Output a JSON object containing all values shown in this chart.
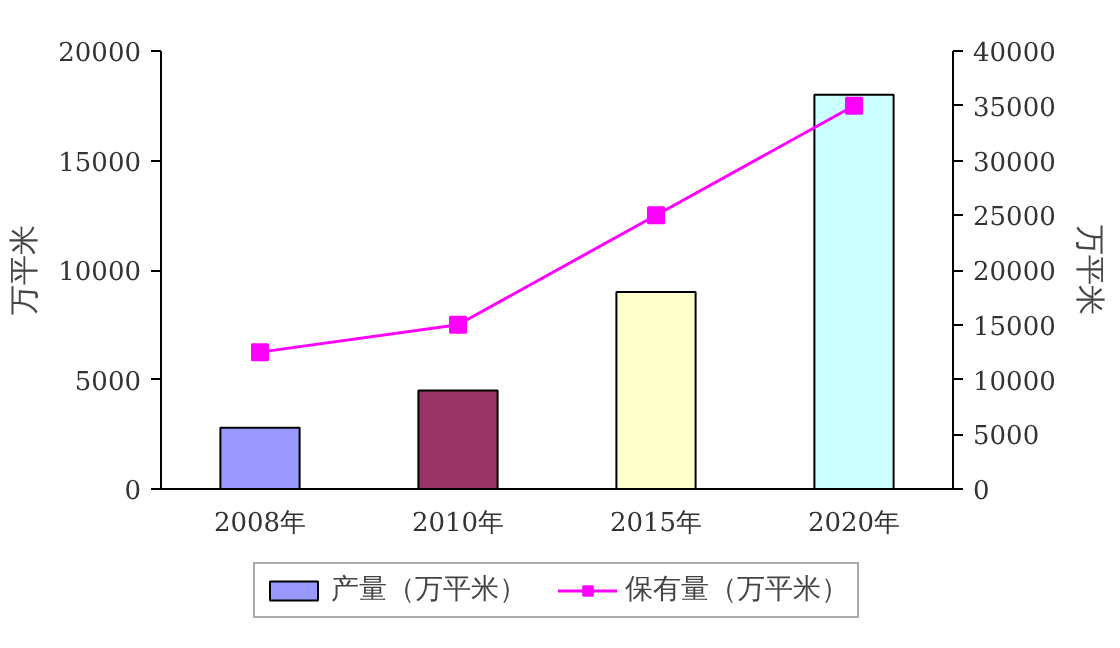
{
  "chart_data": {
    "type": "bar",
    "categories": [
      "2008年",
      "2010年",
      "2015年",
      "2020年"
    ],
    "series": [
      {
        "name": "产量（万平米）",
        "color": "#9999ff",
        "colors": [
          "#9999ff",
          "#993366",
          "#ffffcc",
          "#ccffff"
        ],
        "values": [
          2800,
          4500,
          9000,
          18000
        ]
      },
      {
        "name": "保有量（万平米）",
        "type": "line",
        "axis": "y2",
        "color": "#ff00ff",
        "values": [
          12500,
          15000,
          25000,
          35000
        ]
      }
    ],
    "marker": "square",
    "ylabel": "万平米",
    "y2label": "万平米",
    "ylim": [
      0,
      20000
    ],
    "yticks": [
      0,
      5000,
      10000,
      15000,
      20000
    ],
    "y2lim": [
      0,
      40000
    ],
    "y2ticks": [
      0,
      5000,
      10000,
      15000,
      20000,
      25000,
      30000,
      35000,
      40000
    ],
    "legend": "bottom",
    "grid": false
  }
}
